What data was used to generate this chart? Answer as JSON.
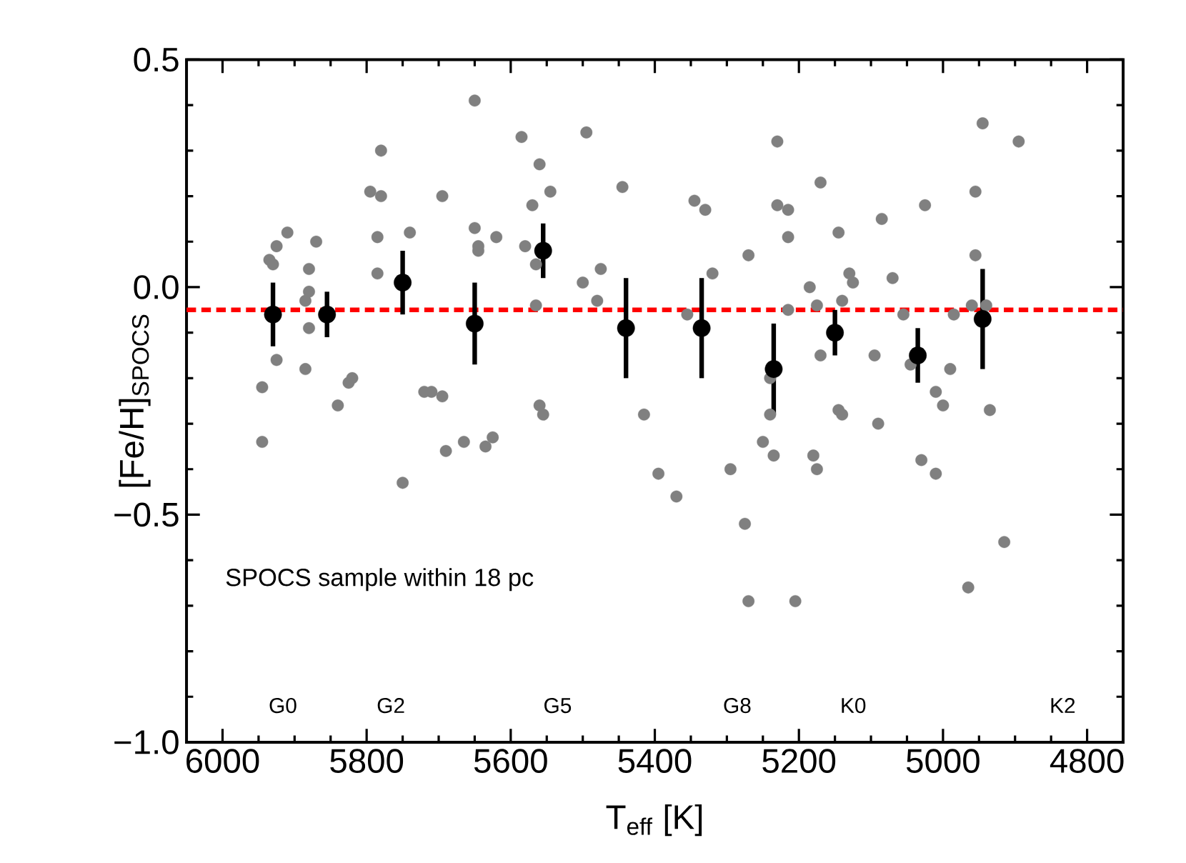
{
  "chart_data": {
    "type": "scatter",
    "xlabel": "T$_{eff}$ [K]",
    "ylabel": "[Fe/H]$_{SPOCS}$",
    "xlim": [
      6050,
      4750
    ],
    "xticks": [
      6000,
      5800,
      5600,
      5400,
      5200,
      5000,
      4800
    ],
    "ylim": [
      -1.0,
      0.5
    ],
    "yticks": [
      {
        "value": -1.0,
        "label": "−1.0"
      },
      {
        "value": -0.5,
        "label": "−0.5"
      },
      {
        "value": 0,
        "label": "0.0"
      },
      0.5
    ],
    "marker": "circle",
    "series": [
      {
        "color": "#808080",
        "x": [
          5945,
          5945,
          5935,
          5930,
          5925,
          5925,
          5910,
          5885,
          5885,
          5880,
          5880,
          5880,
          5870,
          5840,
          5825,
          5820,
          5795,
          5785,
          5785,
          5780,
          5780,
          5750,
          5740,
          5720,
          5710,
          5695,
          5695,
          5690,
          5665,
          5650,
          5650,
          5645,
          5645,
          5635,
          5625,
          5620,
          5585,
          5560,
          5545,
          5570,
          5495,
          5580,
          5565,
          5565,
          5560,
          5555,
          5500,
          5475,
          5480,
          5445,
          5415,
          5395,
          5370,
          5355,
          5345,
          5330,
          5320,
          5295,
          5270,
          5250,
          5235,
          5240,
          5240,
          5230,
          5230,
          5215,
          5215,
          5215,
          5185,
          5180,
          5175,
          5170,
          5175,
          5170,
          5145,
          5140,
          5130,
          5125,
          5145,
          5140,
          5095,
          5090,
          5085,
          5070,
          5055,
          5045,
          5030,
          5025,
          5010,
          5010,
          5000,
          4990,
          4985,
          4960,
          4955,
          4955,
          4945,
          4940,
          4935,
          4895,
          5275,
          5270,
          5205,
          4965,
          4915
        ],
        "values": [
          -0.22,
          -0.34,
          0.06,
          0.05,
          0.09,
          -0.16,
          0.12,
          -0.18,
          -0.03,
          -0.09,
          0.04,
          -0.01,
          0.1,
          -0.26,
          -0.21,
          -0.2,
          0.21,
          0.11,
          0.03,
          0.2,
          0.3,
          -0.43,
          0.12,
          -0.23,
          -0.23,
          -0.24,
          0.2,
          -0.36,
          -0.34,
          0.41,
          0.13,
          0.09,
          0.08,
          -0.35,
          -0.33,
          0.11,
          0.33,
          0.27,
          0.21,
          0.18,
          0.34,
          0.09,
          0.05,
          -0.04,
          -0.26,
          -0.28,
          0.01,
          0.04,
          -0.03,
          0.22,
          -0.28,
          -0.41,
          -0.46,
          -0.06,
          0.19,
          0.17,
          0.03,
          -0.4,
          0.07,
          -0.34,
          -0.37,
          -0.2,
          -0.28,
          0.32,
          0.18,
          0.17,
          0.11,
          -0.05,
          0.0,
          -0.37,
          -0.04,
          0.23,
          -0.4,
          -0.15,
          0.12,
          -0.03,
          0.03,
          0.01,
          -0.27,
          -0.28,
          -0.15,
          -0.3,
          0.15,
          0.02,
          -0.06,
          -0.17,
          -0.38,
          0.18,
          -0.41,
          -0.23,
          -0.26,
          -0.18,
          -0.06,
          -0.04,
          0.07,
          0.21,
          0.36,
          -0.04,
          -0.27,
          0.32,
          -0.52,
          -0.69,
          -0.69,
          -0.66,
          -0.56
        ]
      },
      {
        "color": "#000000",
        "x": [
          5930,
          5855,
          5750,
          5650,
          5555,
          5440,
          5335,
          5235,
          5150,
          5035,
          4945
        ],
        "values": [
          -0.06,
          -0.06,
          0.01,
          -0.08,
          0.08,
          -0.09,
          -0.09,
          -0.18,
          -0.1,
          -0.15,
          -0.07
        ],
        "errors": [
          0.07,
          0.05,
          0.07,
          0.09,
          0.06,
          0.11,
          0.11,
          0.1,
          0.05,
          0.06,
          0.11
        ]
      }
    ],
    "ref_lines": [
      {
        "axis": "y",
        "value": -0.05,
        "color": "#ff0000",
        "line_style": "dashed"
      }
    ],
    "annotations": [
      "SPOCS sample within 18 pc",
      "G0",
      "G2",
      "G5",
      "G8",
      "K0",
      "K2"
    ]
  }
}
